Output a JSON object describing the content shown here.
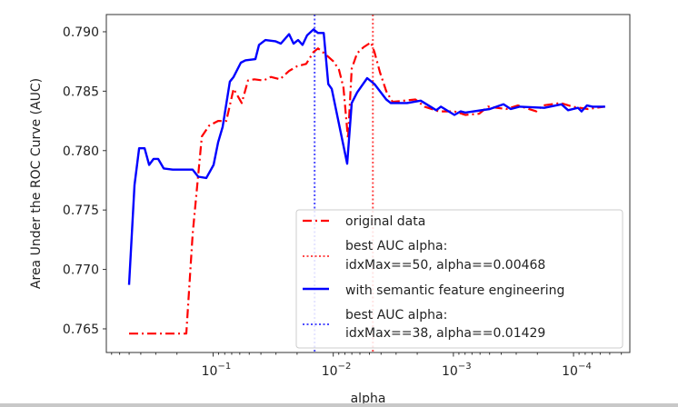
{
  "chart_data": {
    "type": "line",
    "title": "",
    "xlabel": "alpha",
    "ylabel": "Area Under the ROC Curve (AUC)",
    "x_scale": "log",
    "x_reversed": true,
    "xlim": [
      0.774,
      3.4e-05
    ],
    "ylim": [
      0.76301,
      0.79145
    ],
    "grid": false,
    "legend_position": "lower-right",
    "x_ticks": [
      {
        "value": 0.1,
        "base": "10",
        "exp": "−1"
      },
      {
        "value": 0.01,
        "base": "10",
        "exp": "−2"
      },
      {
        "value": 0.001,
        "base": "10",
        "exp": "−3"
      },
      {
        "value": 0.0001,
        "base": "10",
        "exp": "−4"
      }
    ],
    "y_ticks": [
      0.765,
      0.77,
      0.775,
      0.78,
      0.785,
      0.79
    ],
    "y_tick_labels": [
      "0.765",
      "0.770",
      "0.775",
      "0.780",
      "0.785",
      "0.790"
    ],
    "series": [
      {
        "name": "original data",
        "color": "#ff0000",
        "style": "dash-dot",
        "x": [
          0.501,
          0.167,
          0.148,
          0.124,
          0.108,
          0.0908,
          0.0777,
          0.0676,
          0.0578,
          0.0512,
          0.0453,
          0.038,
          0.0331,
          0.0278,
          0.0233,
          0.02,
          0.0168,
          0.0146,
          0.0134,
          0.0116,
          0.00995,
          0.00896,
          0.00822,
          0.00754,
          0.00702,
          0.00632,
          0.0056,
          0.00486,
          0.00454,
          0.00409,
          0.00362,
          0.00321,
          0.00207,
          0.00174,
          0.00132,
          0.000981,
          0.000796,
          0.000612,
          0.000515,
          0.000363,
          0.00029,
          0.000204,
          0.000181,
          0.000128,
          0.000102,
          7.59e-05,
          5.55e-05
        ],
        "y": [
          0.7646,
          0.7646,
          0.773,
          0.7812,
          0.7821,
          0.7825,
          0.7825,
          0.7852,
          0.784,
          0.7859,
          0.786,
          0.7859,
          0.7862,
          0.786,
          0.7867,
          0.7871,
          0.7873,
          0.7883,
          0.7886,
          0.7881,
          0.7875,
          0.7868,
          0.7853,
          0.781,
          0.7869,
          0.7882,
          0.7887,
          0.7891,
          0.7883,
          0.7866,
          0.785,
          0.7841,
          0.7843,
          0.7837,
          0.7833,
          0.7833,
          0.783,
          0.7831,
          0.7837,
          0.7835,
          0.7838,
          0.7833,
          0.7838,
          0.784,
          0.7837,
          0.7835,
          0.7837
        ]
      },
      {
        "name": "with semantic feature engineering",
        "color": "#0000ff",
        "style": "solid",
        "x": [
          0.501,
          0.451,
          0.413,
          0.372,
          0.341,
          0.313,
          0.287,
          0.258,
          0.217,
          0.148,
          0.133,
          0.114,
          0.0991,
          0.0908,
          0.0833,
          0.0725,
          0.0676,
          0.0588,
          0.0539,
          0.0445,
          0.0415,
          0.0367,
          0.0303,
          0.0273,
          0.0233,
          0.0214,
          0.0196,
          0.018,
          0.0165,
          0.0146,
          0.0134,
          0.012,
          0.011,
          0.0103,
          0.00766,
          0.00702,
          0.00632,
          0.00522,
          0.00454,
          0.00362,
          0.00332,
          0.00243,
          0.00187,
          0.00139,
          0.00127,
          0.000981,
          0.000869,
          0.000796,
          0.000498,
          0.000383,
          0.000333,
          0.00028,
          0.000175,
          0.000126,
          0.000111,
          9.18e-05,
          8.57e-05,
          7.73e-05,
          6.95e-05,
          5.45e-05
        ],
        "y": [
          0.7687,
          0.7771,
          0.7802,
          0.7802,
          0.7788,
          0.7793,
          0.7793,
          0.7785,
          0.7784,
          0.7784,
          0.7778,
          0.7777,
          0.7788,
          0.7807,
          0.782,
          0.7858,
          0.7862,
          0.7874,
          0.7876,
          0.7877,
          0.7889,
          0.7893,
          0.7892,
          0.789,
          0.7898,
          0.789,
          0.7893,
          0.7889,
          0.7897,
          0.7902,
          0.7899,
          0.7899,
          0.7856,
          0.7852,
          0.7789,
          0.784,
          0.7849,
          0.7861,
          0.7856,
          0.7843,
          0.784,
          0.784,
          0.7842,
          0.7834,
          0.7837,
          0.783,
          0.7833,
          0.7832,
          0.7835,
          0.7839,
          0.7835,
          0.7837,
          0.7836,
          0.7839,
          0.7834,
          0.7836,
          0.7833,
          0.7838,
          0.7837,
          0.7837
        ]
      }
    ],
    "vlines": [
      {
        "label_line1": "best AUC alpha:",
        "label_line2": "idxMax==50, alpha==0.00468",
        "x": 0.00468,
        "color": "#ff0000",
        "style": "dotted"
      },
      {
        "label_line1": "best AUC alpha:",
        "label_line2": "idxMax==38, alpha==0.01429",
        "x": 0.01429,
        "color": "#0000ff",
        "style": "dotted"
      }
    ]
  }
}
